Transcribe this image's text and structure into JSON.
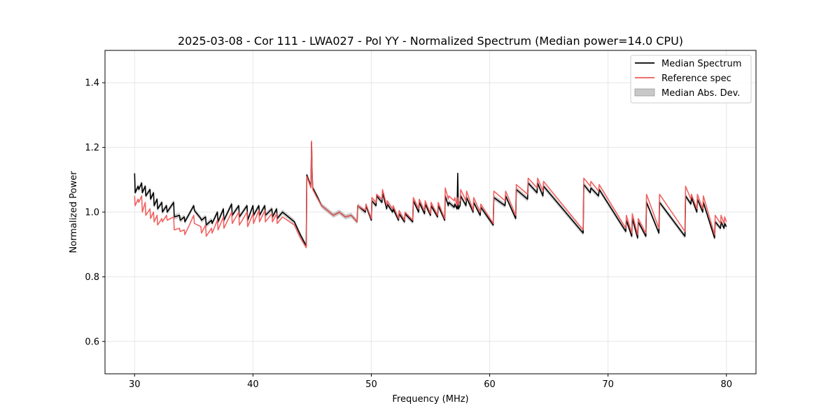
{
  "chart_data": {
    "type": "line",
    "title": "2025-03-08 - Cor 111 - LWA027 - Pol YY - Normalized Spectrum (Median power=14.0 CPU)",
    "xlabel": "Frequency (MHz)",
    "ylabel": "Normalized Power",
    "xlim": [
      27.5,
      82.5
    ],
    "ylim": [
      0.5,
      1.5
    ],
    "xticks": [
      30,
      40,
      50,
      60,
      70,
      80
    ],
    "yticks": [
      0.6,
      0.8,
      1.0,
      1.2,
      1.4
    ],
    "xtick_labels": [
      "30",
      "40",
      "50",
      "60",
      "70",
      "80"
    ],
    "ytick_labels": [
      "0.6",
      "0.8",
      "1.0",
      "1.2",
      "1.4"
    ],
    "grid": true,
    "legend_position": "top-right",
    "legend": [
      "Median Spectrum",
      "Reference spec",
      "Median Abs. Dev."
    ],
    "series": [
      {
        "name": "Median Spectrum",
        "color": "#000000",
        "x": [
          30.0,
          30.05,
          30.3,
          30.35,
          30.6,
          30.65,
          30.9,
          30.95,
          31.3,
          31.35,
          31.6,
          31.65,
          31.9,
          31.95,
          32.3,
          32.35,
          32.7,
          32.75,
          33.3,
          33.35,
          33.8,
          33.85,
          34.2,
          34.25,
          35.0,
          35.05,
          35.6,
          35.65,
          36.0,
          36.05,
          36.5,
          36.55,
          37.0,
          37.05,
          37.5,
          37.55,
          38.2,
          38.25,
          38.8,
          38.85,
          39.5,
          39.55,
          40.0,
          40.05,
          40.5,
          40.55,
          41.0,
          41.05,
          41.6,
          41.65,
          42.0,
          42.05,
          42.5,
          43.5,
          44.0,
          44.5,
          44.55,
          44.9,
          44.95,
          45.0,
          45.05,
          45.4,
          45.8,
          46.3,
          46.8,
          47.3,
          47.8,
          48.3,
          48.8,
          48.85,
          49.5,
          49.55,
          50.0,
          50.05,
          50.4,
          50.45,
          50.9,
          50.95,
          51.3,
          51.35,
          51.8,
          51.85,
          52.3,
          52.35,
          52.8,
          52.85,
          53.5,
          53.55,
          54.0,
          54.05,
          54.5,
          54.55,
          55.0,
          55.05,
          55.6,
          55.65,
          56.2,
          56.25,
          56.5,
          56.55,
          57.0,
          57.05,
          57.25,
          57.3,
          57.35,
          57.5,
          57.55,
          58.0,
          58.05,
          58.6,
          58.65,
          59.2,
          59.25,
          60.3,
          60.35,
          61.3,
          61.35,
          62.2,
          62.25,
          63.2,
          63.25,
          64.0,
          64.05,
          64.5,
          64.55,
          67.9,
          67.95,
          68.5,
          68.55,
          69.2,
          69.25,
          71.5,
          71.55,
          72.0,
          72.05,
          72.5,
          72.55,
          73.2,
          73.25,
          74.3,
          74.35,
          76.5,
          76.55,
          77.0,
          77.05,
          77.5,
          77.55,
          78.0,
          78.05,
          79.0,
          79.05,
          79.5,
          79.55,
          79.8,
          79.85,
          80.0
        ],
        "values": [
          1.12,
          1.06,
          1.08,
          1.07,
          1.09,
          1.06,
          1.08,
          1.05,
          1.07,
          1.04,
          1.06,
          1.02,
          1.04,
          1.01,
          1.03,
          1.0,
          1.02,
          1.0,
          1.03,
          0.985,
          0.99,
          0.975,
          0.985,
          0.97,
          1.02,
          1.005,
          0.98,
          0.975,
          0.985,
          0.96,
          0.975,
          0.965,
          1.0,
          0.97,
          1.01,
          0.975,
          1.025,
          0.99,
          1.02,
          0.985,
          1.02,
          0.975,
          1.02,
          0.99,
          1.02,
          0.99,
          1.02,
          0.99,
          1.01,
          0.985,
          1.01,
          0.98,
          1.0,
          0.97,
          0.93,
          0.895,
          1.115,
          1.08,
          1.215,
          1.12,
          1.075,
          1.05,
          1.02,
          1.005,
          0.99,
          1.0,
          0.985,
          0.99,
          0.97,
          1.02,
          1.0,
          1.02,
          0.975,
          1.035,
          1.02,
          1.05,
          1.03,
          1.06,
          1.01,
          1.025,
          1.0,
          1.01,
          0.975,
          0.995,
          0.97,
          0.995,
          0.97,
          1.035,
          1.0,
          1.03,
          0.995,
          1.025,
          0.99,
          1.02,
          0.985,
          1.02,
          0.975,
          1.05,
          1.02,
          1.03,
          1.015,
          1.025,
          1.01,
          1.12,
          1.01,
          1.02,
          1.05,
          1.02,
          1.045,
          1.0,
          1.03,
          0.99,
          1.015,
          0.96,
          1.045,
          1.02,
          1.05,
          0.98,
          1.07,
          1.04,
          1.09,
          1.06,
          1.09,
          1.05,
          1.08,
          0.935,
          1.085,
          1.06,
          1.075,
          1.05,
          1.07,
          0.94,
          0.975,
          0.925,
          0.98,
          0.92,
          0.97,
          0.925,
          1.03,
          0.935,
          1.03,
          0.925,
          1.05,
          1.025,
          1.045,
          1.0,
          1.04,
          1.0,
          1.03,
          0.92,
          0.97,
          0.95,
          0.97,
          0.95,
          0.965,
          0.955
        ]
      },
      {
        "name": "Reference spec",
        "color": "#f05a5a",
        "x": [
          30.0,
          30.05,
          30.3,
          30.35,
          30.6,
          30.65,
          30.9,
          30.95,
          31.3,
          31.35,
          31.6,
          31.65,
          31.9,
          31.95,
          32.3,
          32.35,
          32.7,
          32.75,
          33.3,
          33.35,
          33.8,
          33.85,
          34.2,
          34.25,
          35.0,
          35.05,
          35.6,
          35.65,
          36.0,
          36.05,
          36.5,
          36.55,
          37.0,
          37.05,
          37.5,
          37.55,
          38.2,
          38.25,
          38.8,
          38.85,
          39.5,
          39.55,
          40.0,
          40.05,
          40.5,
          40.55,
          41.0,
          41.05,
          41.6,
          41.65,
          42.0,
          42.05,
          42.5,
          43.5,
          44.0,
          44.5,
          44.55,
          44.9,
          44.95,
          45.0,
          45.05,
          45.4,
          45.8,
          46.3,
          46.8,
          47.3,
          47.8,
          48.3,
          48.8,
          48.85,
          49.5,
          49.55,
          50.0,
          50.05,
          50.4,
          50.45,
          50.9,
          50.95,
          51.3,
          51.35,
          51.8,
          51.85,
          52.3,
          52.35,
          52.8,
          52.85,
          53.5,
          53.55,
          54.0,
          54.05,
          54.5,
          54.55,
          55.0,
          55.05,
          55.6,
          55.65,
          56.2,
          56.25,
          56.5,
          56.55,
          57.0,
          57.05,
          57.25,
          57.3,
          57.35,
          57.5,
          57.55,
          58.0,
          58.05,
          58.6,
          58.65,
          59.2,
          59.25,
          60.3,
          60.35,
          61.3,
          61.35,
          62.2,
          62.25,
          63.2,
          63.25,
          64.0,
          64.05,
          64.5,
          64.55,
          67.9,
          67.95,
          68.5,
          68.55,
          69.2,
          69.25,
          71.5,
          71.55,
          72.0,
          72.05,
          72.5,
          72.55,
          73.2,
          73.25,
          74.3,
          74.35,
          76.5,
          76.55,
          77.0,
          77.05,
          77.5,
          77.55,
          78.0,
          78.05,
          79.0,
          79.05,
          79.5,
          79.55,
          79.8,
          79.85,
          80.0
        ],
        "values": [
          1.05,
          1.02,
          1.04,
          1.03,
          1.05,
          1.0,
          1.03,
          0.99,
          1.01,
          0.98,
          1.0,
          0.97,
          0.99,
          0.96,
          0.98,
          0.97,
          0.99,
          0.975,
          0.985,
          0.945,
          0.95,
          0.94,
          0.945,
          0.93,
          0.99,
          0.965,
          0.955,
          0.935,
          0.96,
          0.925,
          0.95,
          0.935,
          0.975,
          0.945,
          0.985,
          0.95,
          1.0,
          0.965,
          1.0,
          0.96,
          1.0,
          0.955,
          0.995,
          0.965,
          1.005,
          0.97,
          1.005,
          0.97,
          0.995,
          0.97,
          0.995,
          0.965,
          0.985,
          0.96,
          0.92,
          0.89,
          1.11,
          1.075,
          1.22,
          1.12,
          1.07,
          1.045,
          1.02,
          1.005,
          0.99,
          1.0,
          0.985,
          0.99,
          0.97,
          1.02,
          1.005,
          1.025,
          0.98,
          1.045,
          1.03,
          1.055,
          1.04,
          1.07,
          1.02,
          1.035,
          1.01,
          1.02,
          0.98,
          1.005,
          0.975,
          1.0,
          0.975,
          1.045,
          1.01,
          1.04,
          1.005,
          1.035,
          0.995,
          1.03,
          0.99,
          1.03,
          0.98,
          1.075,
          1.04,
          1.05,
          1.035,
          1.045,
          1.02,
          1.045,
          1.025,
          1.035,
          1.07,
          1.035,
          1.065,
          1.005,
          1.045,
          1.0,
          1.025,
          0.965,
          1.065,
          1.035,
          1.065,
          0.99,
          1.085,
          1.055,
          1.105,
          1.075,
          1.105,
          1.065,
          1.095,
          0.945,
          1.105,
          1.08,
          1.095,
          1.065,
          1.085,
          0.95,
          0.99,
          0.935,
          0.995,
          0.93,
          0.98,
          0.935,
          1.055,
          0.95,
          1.055,
          0.94,
          1.08,
          1.04,
          1.055,
          1.01,
          1.055,
          1.01,
          1.05,
          0.93,
          0.99,
          0.965,
          0.99,
          0.965,
          0.985,
          0.97
        ]
      },
      {
        "name": "Median Abs. Dev.",
        "color": "#c8c8c8",
        "band_halfwidth": 0.008
      }
    ]
  }
}
